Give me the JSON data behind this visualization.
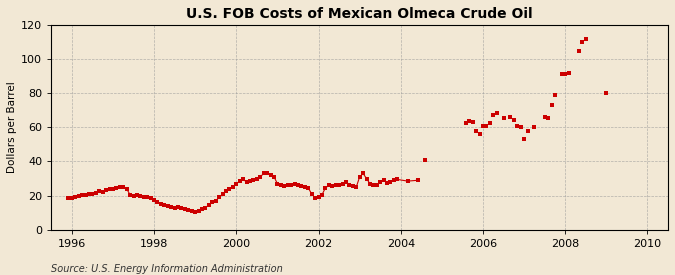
{
  "title": "U.S. FOB Costs of Mexican Olmeca Crude Oil",
  "ylabel": "Dollars per Barrel",
  "source": "Source: U.S. Energy Information Administration",
  "background_color": "#f2e8d5",
  "plot_bg_color": "#f2e8d5",
  "marker_color": "#cc0000",
  "line_color": "#cc0000",
  "xlim": [
    1995.5,
    2010.5
  ],
  "ylim": [
    0,
    120
  ],
  "yticks": [
    0,
    20,
    40,
    60,
    80,
    100,
    120
  ],
  "xticks": [
    1996,
    1998,
    2000,
    2002,
    2004,
    2006,
    2008,
    2010
  ],
  "dense_data": [
    [
      1995.917,
      18.5
    ],
    [
      1996.0,
      18.8
    ],
    [
      1996.083,
      19.2
    ],
    [
      1996.167,
      20.0
    ],
    [
      1996.25,
      20.5
    ],
    [
      1996.333,
      20.2
    ],
    [
      1996.417,
      20.8
    ],
    [
      1996.5,
      21.0
    ],
    [
      1996.583,
      21.5
    ],
    [
      1996.667,
      22.5
    ],
    [
      1996.75,
      22.0
    ],
    [
      1996.833,
      23.5
    ],
    [
      1996.917,
      24.0
    ],
    [
      1997.0,
      23.8
    ],
    [
      1997.083,
      24.5
    ],
    [
      1997.167,
      25.2
    ],
    [
      1997.25,
      24.8
    ],
    [
      1997.333,
      24.0
    ],
    [
      1997.417,
      20.5
    ],
    [
      1997.5,
      20.0
    ],
    [
      1997.583,
      20.2
    ],
    [
      1997.667,
      19.5
    ],
    [
      1997.75,
      19.0
    ],
    [
      1997.833,
      19.2
    ],
    [
      1997.917,
      18.5
    ],
    [
      1998.0,
      17.5
    ],
    [
      1998.083,
      16.5
    ],
    [
      1998.167,
      15.0
    ],
    [
      1998.25,
      14.5
    ],
    [
      1998.333,
      14.0
    ],
    [
      1998.417,
      13.5
    ],
    [
      1998.5,
      13.0
    ],
    [
      1998.583,
      13.2
    ],
    [
      1998.667,
      12.5
    ],
    [
      1998.75,
      12.0
    ],
    [
      1998.833,
      11.5
    ],
    [
      1998.917,
      11.0
    ],
    [
      1999.0,
      10.5
    ],
    [
      1999.083,
      11.0
    ],
    [
      1999.167,
      12.0
    ],
    [
      1999.25,
      13.0
    ],
    [
      1999.333,
      14.5
    ],
    [
      1999.417,
      16.0
    ],
    [
      1999.5,
      17.0
    ],
    [
      1999.583,
      19.0
    ],
    [
      1999.667,
      21.0
    ],
    [
      1999.75,
      22.5
    ],
    [
      1999.833,
      24.0
    ],
    [
      1999.917,
      25.0
    ],
    [
      2000.0,
      27.0
    ],
    [
      2000.083,
      28.5
    ],
    [
      2000.167,
      29.5
    ],
    [
      2000.25,
      28.0
    ],
    [
      2000.333,
      28.5
    ],
    [
      2000.417,
      29.0
    ],
    [
      2000.5,
      30.0
    ],
    [
      2000.583,
      31.0
    ],
    [
      2000.667,
      33.0
    ],
    [
      2000.75,
      33.5
    ],
    [
      2000.833,
      32.0
    ],
    [
      2000.917,
      31.0
    ],
    [
      2001.0,
      27.0
    ],
    [
      2001.083,
      26.5
    ],
    [
      2001.167,
      25.5
    ],
    [
      2001.25,
      26.0
    ],
    [
      2001.333,
      26.5
    ],
    [
      2001.417,
      27.0
    ],
    [
      2001.5,
      26.0
    ],
    [
      2001.583,
      25.5
    ],
    [
      2001.667,
      25.0
    ],
    [
      2001.75,
      24.5
    ],
    [
      2001.833,
      21.0
    ],
    [
      2001.917,
      18.5
    ],
    [
      2002.0,
      19.0
    ],
    [
      2002.083,
      20.5
    ],
    [
      2002.167,
      24.5
    ],
    [
      2002.25,
      26.0
    ],
    [
      2002.333,
      25.5
    ],
    [
      2002.417,
      26.0
    ],
    [
      2002.5,
      26.5
    ],
    [
      2002.583,
      27.0
    ],
    [
      2002.667,
      28.0
    ],
    [
      2002.75,
      26.5
    ],
    [
      2002.833,
      25.5
    ],
    [
      2002.917,
      25.0
    ],
    [
      2003.0,
      31.0
    ],
    [
      2003.083,
      33.0
    ],
    [
      2003.167,
      30.0
    ],
    [
      2003.25,
      27.0
    ],
    [
      2003.333,
      26.5
    ],
    [
      2003.417,
      26.0
    ],
    [
      2003.5,
      28.0
    ],
    [
      2003.583,
      29.0
    ],
    [
      2003.667,
      27.5
    ],
    [
      2003.75,
      28.0
    ],
    [
      2003.833,
      29.0
    ],
    [
      2003.917,
      29.5
    ],
    [
      2004.167,
      28.5
    ],
    [
      2004.417,
      29.0
    ]
  ],
  "sparse_data": [
    [
      2004.583,
      41.0
    ],
    [
      2005.583,
      62.5
    ],
    [
      2005.667,
      64.0
    ],
    [
      2005.75,
      63.0
    ],
    [
      2005.833,
      58.0
    ],
    [
      2005.917,
      56.0
    ],
    [
      2006.0,
      60.5
    ],
    [
      2006.083,
      61.0
    ],
    [
      2006.167,
      62.5
    ],
    [
      2006.25,
      67.0
    ],
    [
      2006.333,
      68.5
    ],
    [
      2006.5,
      65.5
    ],
    [
      2006.667,
      66.0
    ],
    [
      2006.75,
      64.5
    ],
    [
      2006.833,
      60.5
    ],
    [
      2006.917,
      60.0
    ],
    [
      2007.0,
      53.0
    ],
    [
      2007.083,
      58.0
    ],
    [
      2007.25,
      60.0
    ],
    [
      2007.5,
      66.0
    ],
    [
      2007.583,
      65.5
    ],
    [
      2007.667,
      73.0
    ],
    [
      2007.75,
      79.0
    ],
    [
      2007.917,
      91.5
    ],
    [
      2008.0,
      91.5
    ],
    [
      2008.083,
      92.0
    ],
    [
      2008.333,
      105.0
    ],
    [
      2008.417,
      110.0
    ],
    [
      2008.5,
      112.0
    ],
    [
      2009.0,
      80.0
    ]
  ]
}
